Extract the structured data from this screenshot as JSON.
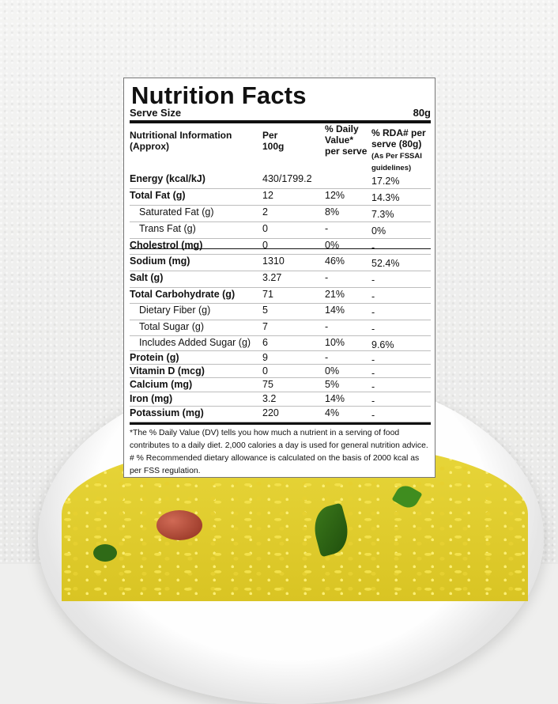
{
  "label": {
    "title": "Nutrition Facts",
    "serve_size_label": "Serve Size",
    "serve_size_value": "80g",
    "headers": {
      "col0": "Nutritional Information (Approx)",
      "col1": "Per 100g",
      "col2": "% Daily Value* per serve",
      "col3": "% RDA# per serve (80g)",
      "col3_note": "(As Per FSSAI guidelines)"
    },
    "rows": [
      {
        "name": "Energy (kcal/kJ)",
        "per100": "430/1799.2",
        "dv": "",
        "rda": "17.2%",
        "bold": true,
        "indent": false
      },
      {
        "name": "Total Fat (g)",
        "per100": "12",
        "dv": "12%",
        "rda": "14.3%",
        "bold": true,
        "indent": false
      },
      {
        "name": "Saturated Fat (g)",
        "per100": "2",
        "dv": "8%",
        "rda": "7.3%",
        "bold": false,
        "indent": true
      },
      {
        "name": "Trans Fat (g)",
        "per100": "0",
        "dv": "-",
        "rda": "0%",
        "bold": false,
        "indent": true
      },
      {
        "name": "Cholestrol (mg)",
        "per100": "0",
        "dv": "0%",
        "rda": "-",
        "bold": true,
        "indent": false
      },
      {
        "name": "Sodium (mg)",
        "per100": "1310",
        "dv": "46%",
        "rda": "52.4%",
        "bold": true,
        "indent": false
      },
      {
        "name": "Salt (g)",
        "per100": "3.27",
        "dv": "-",
        "rda": "-",
        "bold": true,
        "indent": false
      },
      {
        "name": "Total Carbohydrate (g)",
        "per100": "71",
        "dv": "21%",
        "rda": "-",
        "bold": true,
        "indent": false
      },
      {
        "name": "Dietary Fiber (g)",
        "per100": "5",
        "dv": "14%",
        "rda": "-",
        "bold": false,
        "indent": true
      },
      {
        "name": "Total Sugar (g)",
        "per100": "7",
        "dv": "-",
        "rda": "-",
        "bold": false,
        "indent": true
      },
      {
        "name": "Includes Added Sugar (g)",
        "per100": "6",
        "dv": "10%",
        "rda": "9.6%",
        "bold": false,
        "indent": true
      },
      {
        "name": "Protein (g)",
        "per100": "9",
        "dv": "-",
        "rda": "-",
        "bold": true,
        "indent": false
      },
      {
        "name": "Vitamin D (mcg)",
        "per100": "0",
        "dv": "0%",
        "rda": "-",
        "bold": true,
        "indent": false
      },
      {
        "name": "Calcium (mg)",
        "per100": "75",
        "dv": "5%",
        "rda": "-",
        "bold": true,
        "indent": false
      },
      {
        "name": "Iron (mg)",
        "per100": "3.2",
        "dv": "14%",
        "rda": "-",
        "bold": true,
        "indent": false
      },
      {
        "name": "Potassium (mg)",
        "per100": "220",
        "dv": "4%",
        "rda": "-",
        "bold": true,
        "indent": false
      }
    ],
    "footnote_1": "*The % Daily Value (DV) tells you how much a nutrient in a serving of food contributes to a daily diet. 2,000 calories a day is used for general nutrition advice.",
    "footnote_2": "# % Recommended dietary allowance is calculated on the basis of 2000 kcal as per FSS regulation."
  }
}
